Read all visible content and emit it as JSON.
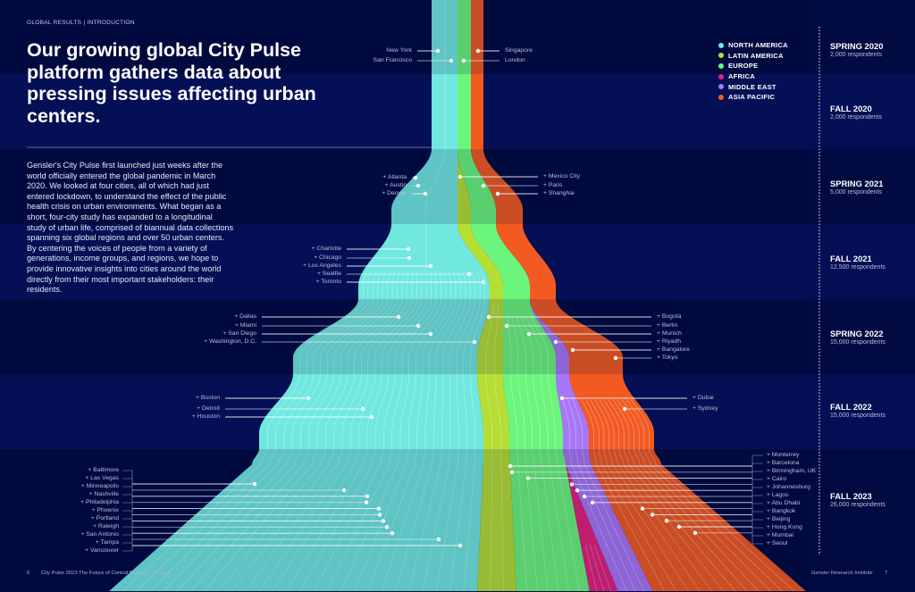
{
  "header": {
    "section": "GLOBAL RESULTS | INTRODUCTION",
    "title": "Our growing global City Pulse platform gathers data about pressing issues affecting urban centers.",
    "body": "Gensler's City Pulse first launched just weeks after the world officially entered the global pandemic in March 2020. We looked at four cities, all of which had just entered lockdown, to understand the effect of the public health crisis on urban environments. What began as a short, four-city study has expanded to a longitudinal study of urban life, comprised of biannual data collections spanning six global regions and over 50 urban centers. By centering the voices of people from a variety of generations, income groups, and regions, we hope to provide innovative insights into cities around the world directly from their most important stakeholders: their residents."
  },
  "legend": [
    {
      "name": "NORTH AMERICA",
      "color": "#70e8e0"
    },
    {
      "name": "LATIN AMERICA",
      "color": "#b6de34"
    },
    {
      "name": "EUROPE",
      "color": "#6cf57c"
    },
    {
      "name": "AFRICA",
      "color": "#e3217c"
    },
    {
      "name": "MIDDLE EAST",
      "color": "#a877f7"
    },
    {
      "name": "ASIA PACIFIC",
      "color": "#f25a22"
    }
  ],
  "chart_data": {
    "type": "area",
    "variant": "streamgraph",
    "series_names": [
      "NORTH AMERICA",
      "LATIN AMERICA",
      "EUROPE",
      "AFRICA",
      "MIDDLE EAST",
      "ASIA PACIFIC"
    ],
    "periods": [
      {
        "label": "SPRING 2020",
        "respondents": "2,000 respondents",
        "cities_left": [
          "New York",
          "San Francisco"
        ],
        "cities_right": [
          "Singapore",
          "London"
        ]
      },
      {
        "label": "FALL 2020",
        "respondents": "2,000 respondents",
        "cities_left": [],
        "cities_right": []
      },
      {
        "label": "SPRING 2021",
        "respondents": "5,000 respondents",
        "cities_left": [
          "+ Atlanta",
          "+ Austin",
          "+ Denver"
        ],
        "cities_right": [
          "+ Mexico City",
          "+ Paris",
          "+ Shanghai"
        ]
      },
      {
        "label": "FALL 2021",
        "respondents": "12,500 respondents",
        "cities_left": [
          "+ Charlotte",
          "+ Chicago",
          "+ Los Angeles",
          "+ Seattle",
          "+ Toronto"
        ],
        "cities_right": []
      },
      {
        "label": "SPRING 2022",
        "respondents": "15,000 respondents",
        "cities_left": [
          "+ Dallas",
          "+ Miami",
          "+ San Diego",
          "+ Washington, D.C."
        ],
        "cities_right": [
          "+ Bogotá",
          "+ Berlin",
          "+ Munich",
          "+ Riyadh",
          "+ Bangalore",
          "+ Tokyo"
        ]
      },
      {
        "label": "FALL 2022",
        "respondents": "15,000 respondents",
        "cities_left": [
          "+ Boston",
          "+ Detroit",
          "+ Houston"
        ],
        "cities_right": [
          "+ Dubai",
          "+ Sydney"
        ]
      },
      {
        "label": "FALL 2023",
        "respondents": "26,000 respondents",
        "cities_left": [
          "+ Baltimore",
          "+ Las Vegas",
          "+ Minneapolis",
          "+ Nashville",
          "+ Philadelphia",
          "+ Phoenix",
          "+ Portland",
          "+ Raleigh",
          "+ San Antonio",
          "+ Tampa",
          "+ Vancouver"
        ],
        "cities_right": [
          "+ Monterrey",
          "+ Barcelona",
          "+ Birmingham, UK",
          "+ Cairo",
          "+ Johannesburg",
          "+ Lagos",
          "+ Abu Dhabi",
          "+ Bangkok",
          "+ Beijing",
          "+ Hong Kong",
          "+ Mumbai",
          "+ Seoul"
        ]
      }
    ]
  },
  "footer": {
    "page_left": "6",
    "publication": "City Pulse 2023 The Future of Central Business Districts",
    "publisher": "Gensler Research Institute",
    "page_right": "7"
  }
}
